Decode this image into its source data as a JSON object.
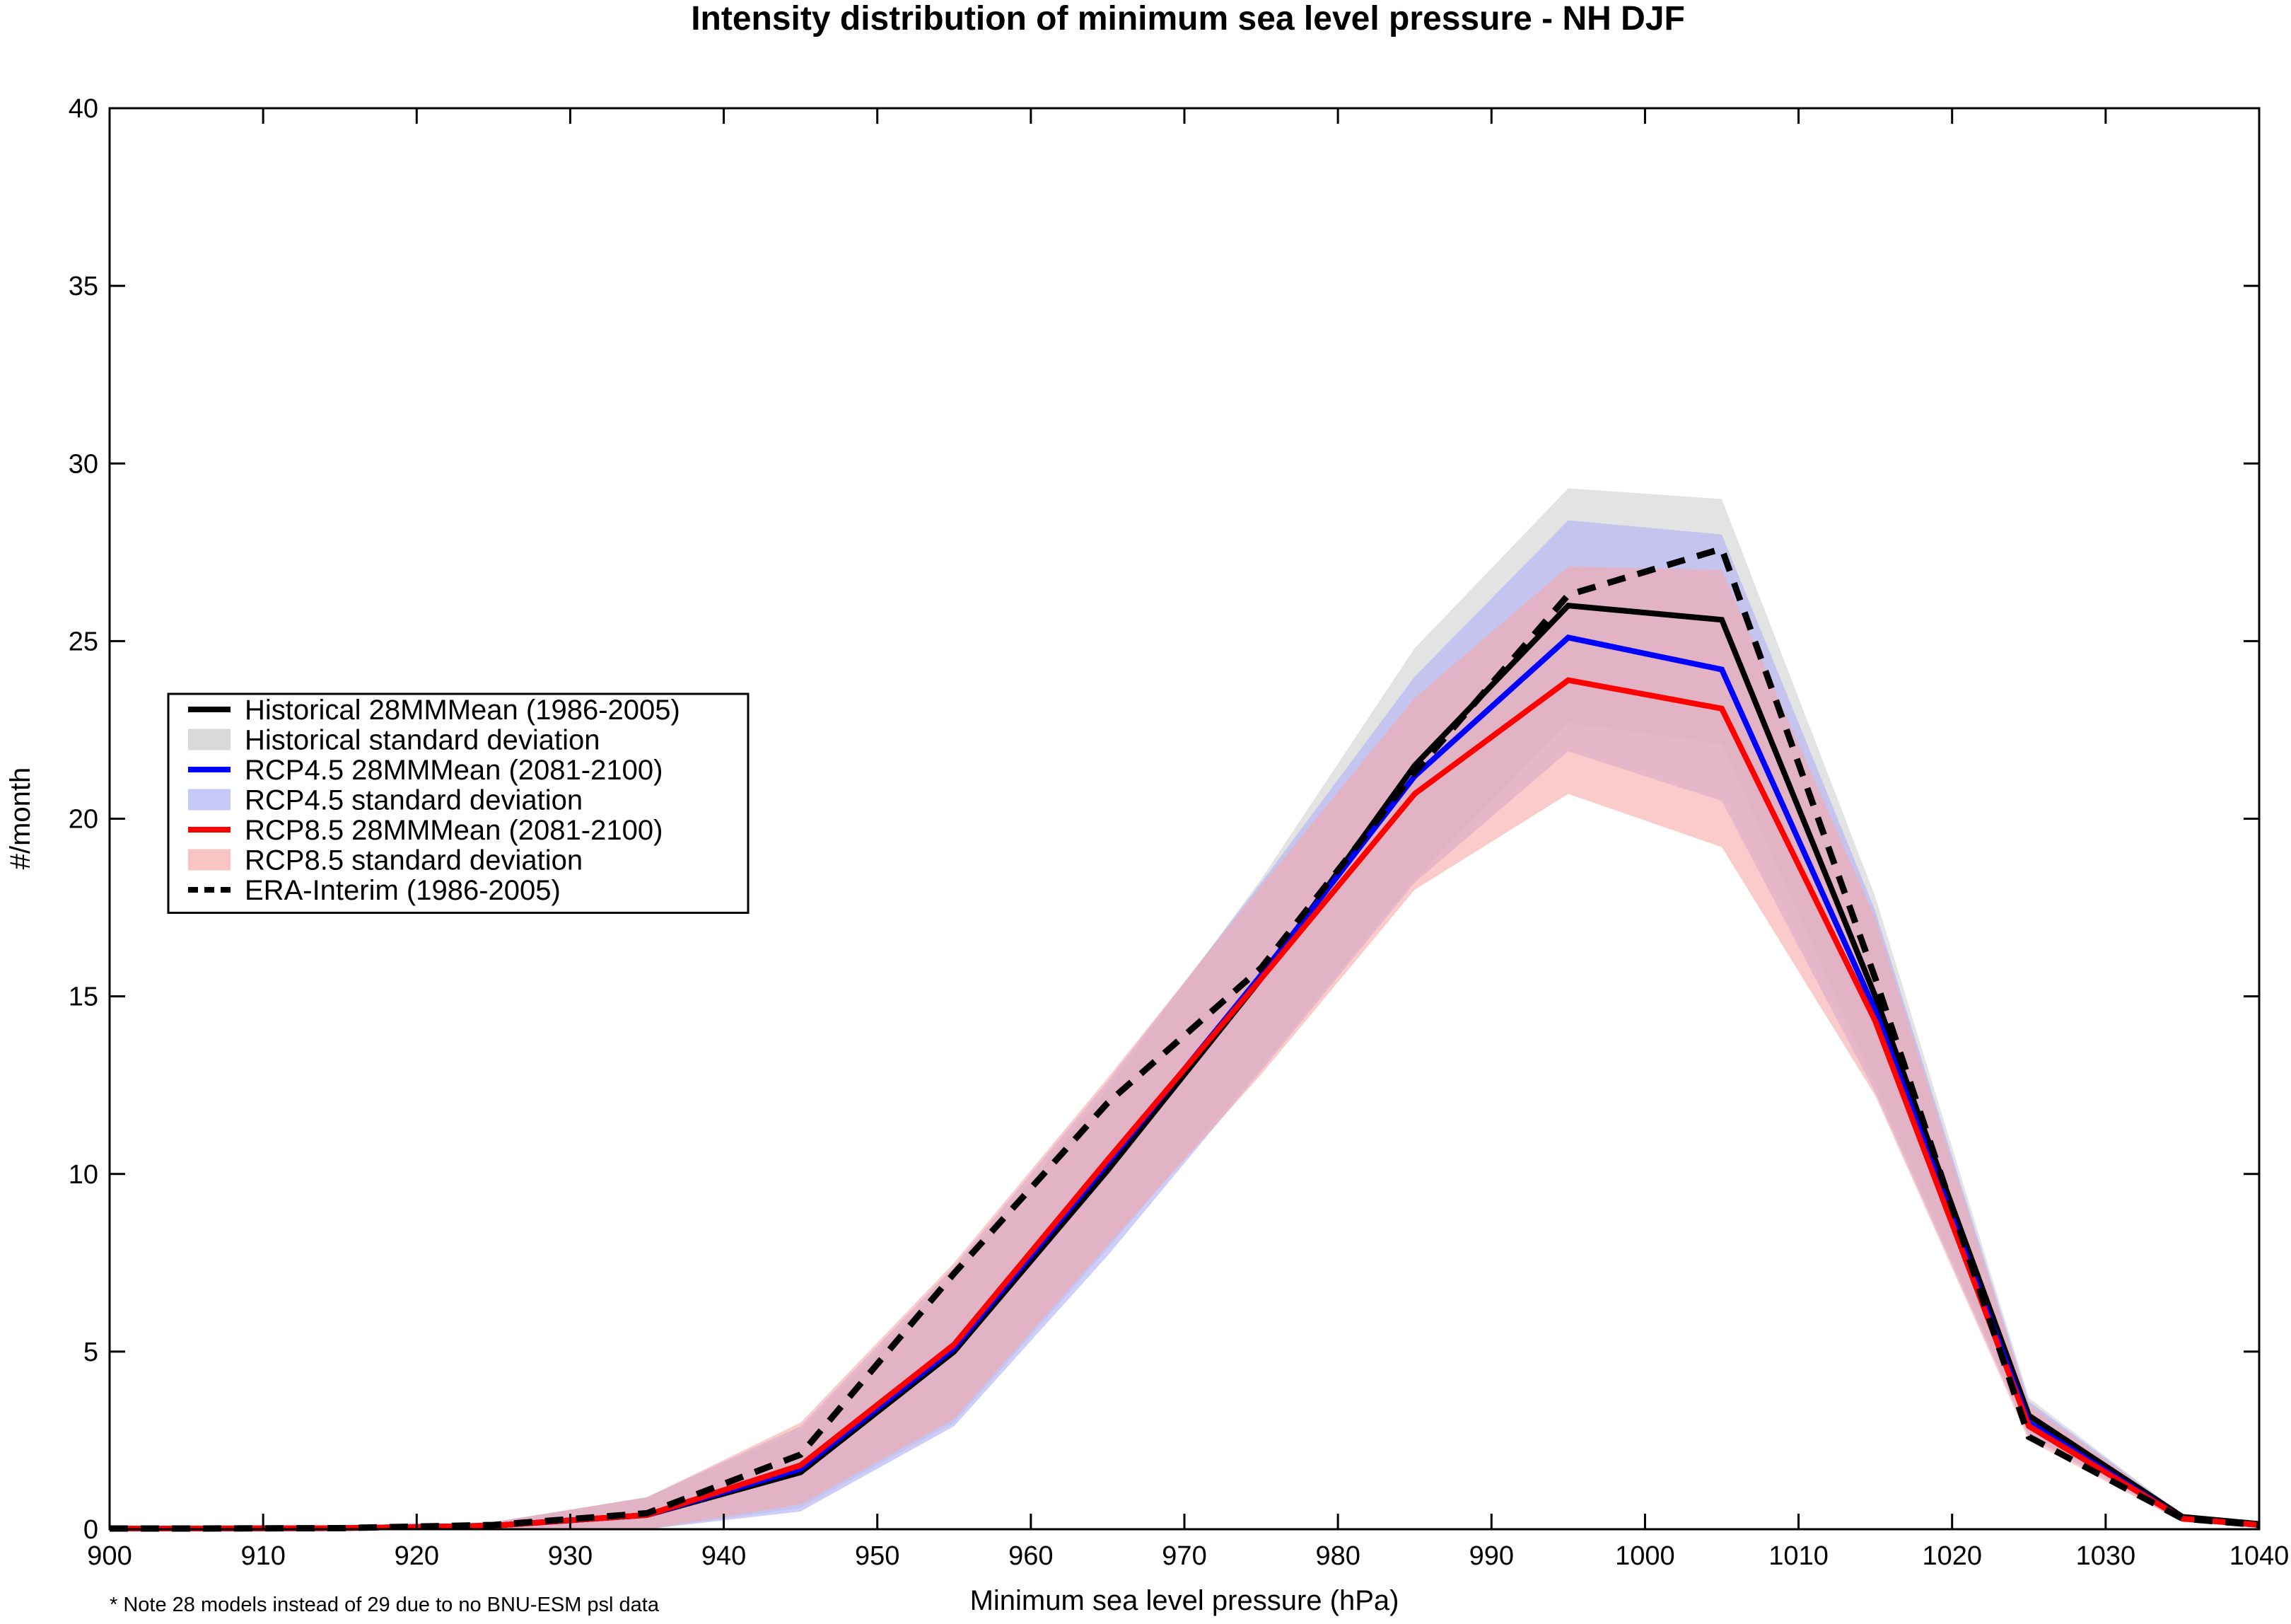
{
  "chart_data": {
    "type": "line",
    "title": "Intensity distribution of minimum sea level pressure - NH DJF",
    "xlabel": "Minimum sea level pressure (hPa)",
    "ylabel": "#/month",
    "xlim": [
      900,
      1040
    ],
    "ylim": [
      0,
      40
    ],
    "x_ticks": [
      900,
      910,
      920,
      930,
      940,
      950,
      960,
      970,
      980,
      990,
      1000,
      1010,
      1020,
      1030,
      1040
    ],
    "y_ticks": [
      0,
      5,
      10,
      15,
      20,
      25,
      30,
      35,
      40
    ],
    "x": [
      900,
      905,
      915,
      925,
      935,
      945,
      955,
      965,
      975,
      985,
      995,
      1005,
      1015,
      1025,
      1035,
      1040
    ],
    "series": [
      {
        "name": "Historical 28MMMean (1986-2005)",
        "style": "solid",
        "color": "#000000",
        "values": [
          0.02,
          0.02,
          0.03,
          0.1,
          0.4,
          1.6,
          5.0,
          10.1,
          15.5,
          21.5,
          26.0,
          25.6,
          15.0,
          3.2,
          0.35,
          0.15
        ]
      },
      {
        "name": "RCP4.5 28MMMean (2081-2100)",
        "style": "solid",
        "color": "#0000ff",
        "values": [
          0.02,
          0.02,
          0.03,
          0.1,
          0.4,
          1.7,
          5.1,
          10.3,
          15.6,
          21.2,
          25.1,
          24.2,
          14.6,
          3.0,
          0.3,
          0.12
        ]
      },
      {
        "name": "RCP8.5 28MMMean (2081-2100)",
        "style": "solid",
        "color": "#ff0000",
        "values": [
          0.02,
          0.02,
          0.03,
          0.1,
          0.4,
          1.8,
          5.2,
          10.4,
          15.5,
          20.7,
          23.9,
          23.1,
          14.3,
          2.9,
          0.3,
          0.12
        ]
      },
      {
        "name": "ERA-Interim (1986-2005)",
        "style": "dashed",
        "color": "#000000",
        "values": [
          0.02,
          0.02,
          0.03,
          0.12,
          0.45,
          2.1,
          7.2,
          12.0,
          15.8,
          21.3,
          26.3,
          27.6,
          15.5,
          2.6,
          0.3,
          0.12
        ]
      }
    ],
    "bands": [
      {
        "name": "Historical standard deviation",
        "color": "#d9d9d9",
        "opacity": 0.75,
        "upper": [
          0.03,
          0.03,
          0.05,
          0.2,
          0.9,
          2.8,
          7.2,
          12.4,
          18.3,
          24.8,
          29.3,
          29.0,
          17.8,
          3.7,
          0.4,
          0.2
        ],
        "lower": [
          0.0,
          0.0,
          0.0,
          0.0,
          0.0,
          0.6,
          3.0,
          7.9,
          13.0,
          18.3,
          22.7,
          22.1,
          12.5,
          2.7,
          0.25,
          0.1
        ]
      },
      {
        "name": "RCP4.5 standard deviation",
        "color": "#b3b3f5",
        "opacity": 0.65,
        "upper": [
          0.03,
          0.03,
          0.05,
          0.2,
          0.9,
          2.9,
          7.4,
          12.6,
          18.2,
          24.0,
          28.4,
          28.0,
          17.4,
          3.6,
          0.4,
          0.2
        ],
        "lower": [
          0.0,
          0.0,
          0.0,
          0.0,
          0.0,
          0.5,
          2.9,
          7.7,
          12.9,
          18.2,
          21.9,
          20.5,
          12.3,
          2.6,
          0.2,
          0.08
        ]
      },
      {
        "name": "RCP8.5 standard deviation",
        "color": "#f5a8a8",
        "opacity": 0.6,
        "upper": [
          0.03,
          0.03,
          0.05,
          0.2,
          0.9,
          3.0,
          7.5,
          12.7,
          18.1,
          23.4,
          27.1,
          27.0,
          17.2,
          3.5,
          0.4,
          0.2
        ],
        "lower": [
          0.0,
          0.0,
          0.0,
          0.0,
          0.0,
          0.7,
          3.1,
          8.0,
          12.8,
          18.0,
          20.7,
          19.2,
          12.2,
          2.5,
          0.2,
          0.08
        ]
      }
    ],
    "legend": {
      "placement": "middle-left",
      "entries": [
        {
          "label": "Historical 28MMMean (1986-2005)",
          "kind": "line",
          "color": "#000000"
        },
        {
          "label": "Historical standard deviation",
          "kind": "patch",
          "color": "#d9d9d9"
        },
        {
          "label": "RCP4.5 28MMMean (2081-2100)",
          "kind": "line",
          "color": "#0000ff"
        },
        {
          "label": "RCP4.5 standard deviation",
          "kind": "patch",
          "color": "#c8c8f8"
        },
        {
          "label": "RCP8.5 28MMMean (2081-2100)",
          "kind": "line",
          "color": "#ff0000"
        },
        {
          "label": "RCP8.5 standard deviation",
          "kind": "patch",
          "color": "#f9c4c4"
        },
        {
          "label": "ERA-Interim (1986-2005)",
          "kind": "dashed",
          "color": "#000000"
        }
      ]
    },
    "note": "* Note 28 models instead of 29 due to no BNU-ESM psl data",
    "grid": false
  }
}
